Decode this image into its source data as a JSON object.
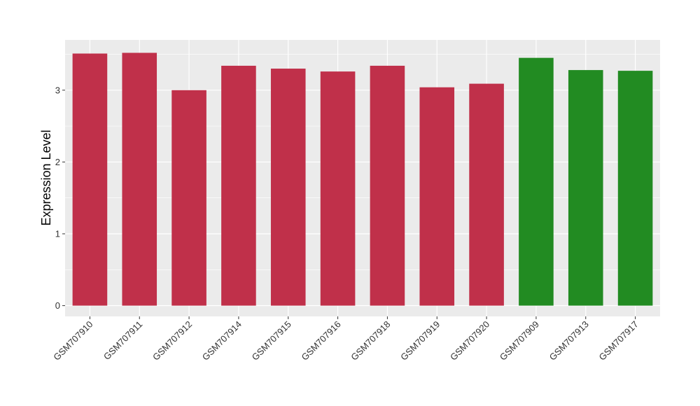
{
  "chart_data": {
    "type": "bar",
    "title": "",
    "xlabel": "",
    "ylabel": "Expression Level",
    "ylim": [
      -0.15,
      3.7
    ],
    "yticks": [
      0,
      1,
      2,
      3
    ],
    "categories": [
      "GSM707910",
      "GSM707911",
      "GSM707912",
      "GSM707914",
      "GSM707915",
      "GSM707916",
      "GSM707918",
      "GSM707919",
      "GSM707920",
      "GSM707909",
      "GSM707913",
      "GSM707917"
    ],
    "values": [
      3.51,
      3.52,
      3.0,
      3.34,
      3.3,
      3.26,
      3.34,
      3.04,
      3.09,
      3.45,
      3.28,
      3.27
    ],
    "groups": [
      "red",
      "red",
      "red",
      "red",
      "red",
      "red",
      "red",
      "red",
      "red",
      "green",
      "green",
      "green"
    ],
    "colors": {
      "red": "#C0304A",
      "green": "#228B22"
    },
    "panel_background": "#EBEBEB",
    "gridline_color": "#FFFFFF",
    "grid": true,
    "legend": "none"
  }
}
